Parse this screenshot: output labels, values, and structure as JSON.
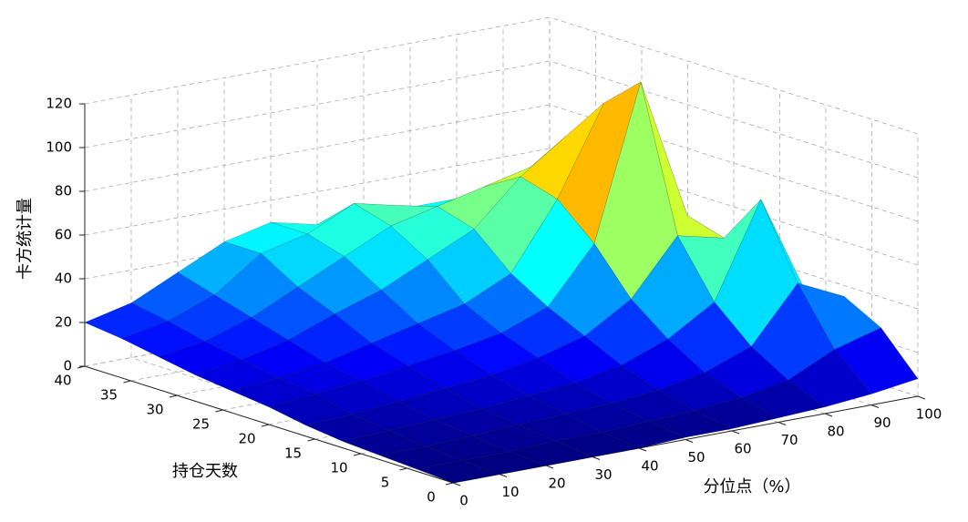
{
  "chart_data": {
    "type": "surface",
    "xlabel": "分位点（%）",
    "ylabel": "持仓天数",
    "zlabel": "卡方统计量",
    "x": [
      0,
      10,
      20,
      30,
      40,
      50,
      60,
      70,
      80,
      90,
      100
    ],
    "y": [
      0,
      4,
      8,
      12,
      16,
      20,
      24,
      28,
      32,
      36,
      40
    ],
    "z": [
      [
        0,
        0,
        0,
        0,
        0,
        1,
        1,
        2,
        3,
        5,
        8
      ],
      [
        1,
        1,
        1,
        2,
        2,
        3,
        4,
        6,
        10,
        20,
        26
      ],
      [
        2,
        2,
        3,
        4,
        5,
        6,
        8,
        12,
        20,
        45,
        35
      ],
      [
        3,
        4,
        5,
        6,
        8,
        10,
        14,
        22,
        35,
        78,
        30
      ],
      [
        5,
        6,
        8,
        10,
        12,
        16,
        22,
        35,
        60,
        55,
        20
      ],
      [
        8,
        10,
        12,
        15,
        18,
        22,
        30,
        55,
        125,
        60,
        15
      ],
      [
        10,
        12,
        15,
        20,
        25,
        30,
        40,
        70,
        110,
        50,
        12
      ],
      [
        12,
        15,
        20,
        28,
        35,
        45,
        55,
        75,
        90,
        45,
        10
      ],
      [
        15,
        18,
        25,
        35,
        45,
        55,
        60,
        65,
        70,
        40,
        10
      ],
      [
        18,
        22,
        30,
        45,
        50,
        60,
        55,
        50,
        55,
        35,
        10
      ],
      [
        20,
        25,
        35,
        45,
        50,
        45,
        40,
        45,
        45,
        30,
        10
      ]
    ],
    "xlim": [
      0,
      100
    ],
    "xticks": [
      0,
      10,
      20,
      30,
      40,
      50,
      60,
      70,
      80,
      90,
      100
    ],
    "ylim": [
      0,
      40
    ],
    "yticks": [
      0,
      5,
      10,
      15,
      20,
      25,
      30,
      35,
      40
    ],
    "zlim": [
      0,
      120
    ],
    "zticks": [
      0,
      20,
      40,
      60,
      80,
      100,
      120
    ],
    "grid": true,
    "colormap": "jet",
    "clim": [
      0,
      130
    ]
  }
}
